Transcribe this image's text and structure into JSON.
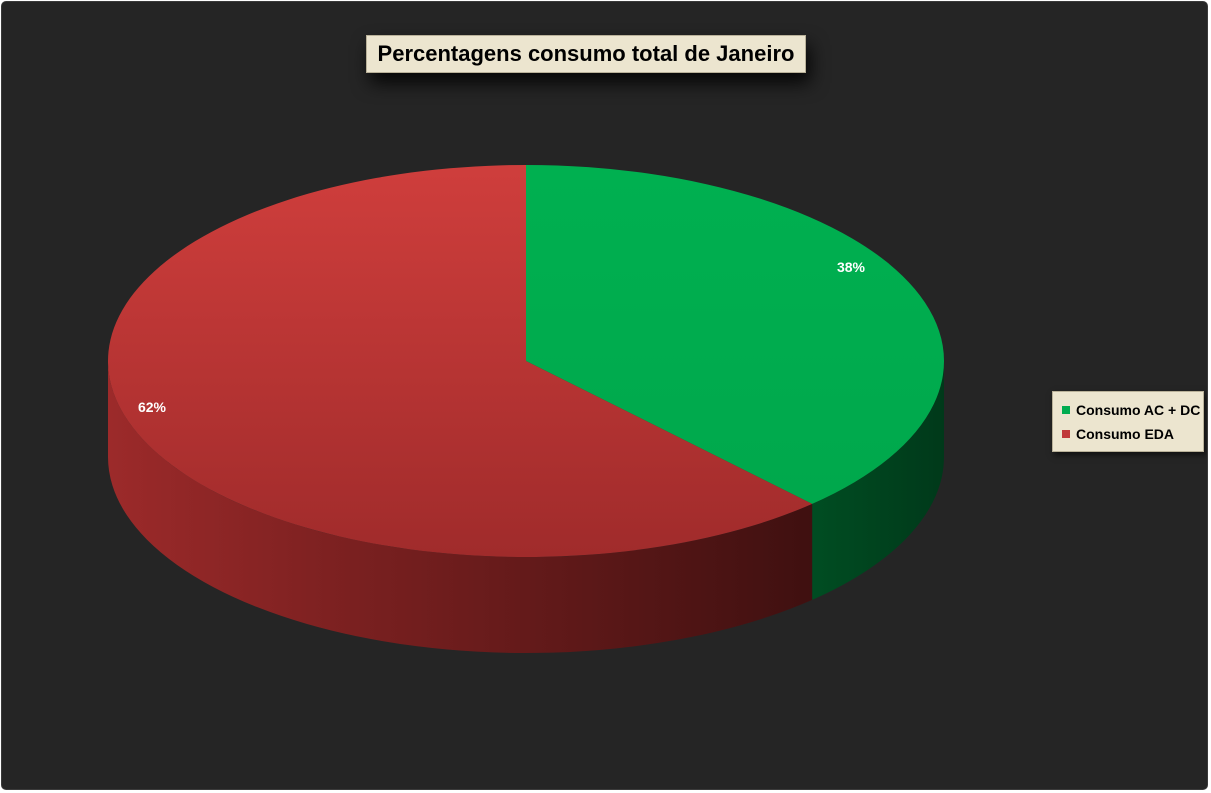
{
  "chart_data": {
    "type": "pie",
    "title": "Percentagens consumo total de Janeiro",
    "categories": [
      "Consumo AC + DC",
      "Consumo EDA"
    ],
    "values": [
      38,
      62
    ],
    "data_labels": [
      "38%",
      "62%"
    ],
    "colors": [
      "#00ac4f",
      "#c0393a"
    ],
    "legend_position": "right",
    "style": "3d-pie"
  }
}
